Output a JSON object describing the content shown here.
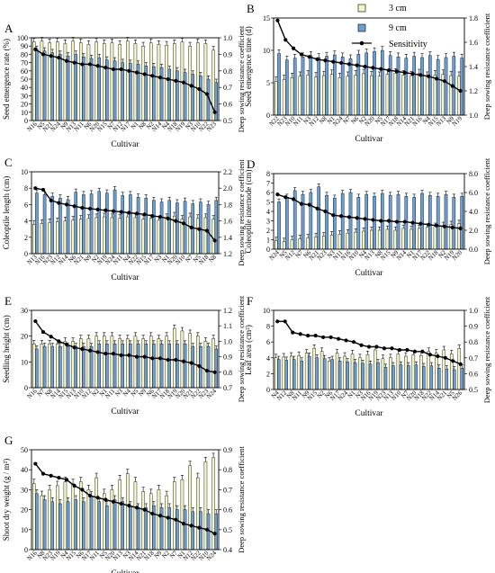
{
  "legend": [
    {
      "name": "3 cm",
      "type": "bar",
      "color": "#f4f4c4"
    },
    {
      "name": "9 cm",
      "type": "bar",
      "color": "#6a9fd6"
    },
    {
      "name": "Sensitivity",
      "type": "line",
      "color": "#000000"
    }
  ],
  "colors": {
    "bar_3cm": "#f4f4c4",
    "bar_9cm": "#6a9fd6",
    "line": "#000000"
  },
  "chart_data": [
    {
      "panel": "A",
      "type": "bar",
      "xlabel": "Cultivar",
      "ylabel": "Seed emergence rate (%)",
      "y2label": "Deep sowing resistance coefficient",
      "ylim": [
        0,
        100
      ],
      "yticks": [
        0,
        10,
        20,
        30,
        40,
        50,
        60,
        70,
        80,
        90,
        100
      ],
      "y2lim": [
        0.5,
        1.0
      ],
      "y2ticks": [
        "0.5",
        "0.6",
        "0.7",
        "0.8",
        "0.9",
        "1.0"
      ],
      "categories": [
        "N16",
        "N5",
        "N21",
        "N24",
        "N9",
        "N13",
        "N11",
        "N6",
        "N20",
        "N15",
        "N7",
        "N12",
        "N17",
        "N1",
        "N8",
        "N2",
        "N14",
        "N4",
        "N18",
        "N19",
        "N3",
        "N10",
        "N22",
        "N23"
      ],
      "series": [
        {
          "name": "3 cm",
          "values": [
            95,
            96,
            94,
            95,
            93,
            96,
            94,
            92,
            95,
            93,
            94,
            92,
            96,
            93,
            90,
            94,
            92,
            91,
            93,
            95,
            90,
            94,
            93,
            85
          ]
        },
        {
          "name": "9 cm",
          "values": [
            86,
            84,
            82,
            80,
            78,
            80,
            77,
            75,
            76,
            73,
            72,
            70,
            69,
            68,
            66,
            65,
            64,
            62,
            60,
            58,
            56,
            54,
            50,
            46
          ]
        },
        {
          "name": "Sensitivity",
          "values": [
            0.93,
            0.9,
            0.89,
            0.88,
            0.86,
            0.85,
            0.84,
            0.84,
            0.83,
            0.82,
            0.81,
            0.81,
            0.8,
            0.79,
            0.78,
            0.77,
            0.76,
            0.75,
            0.74,
            0.73,
            0.71,
            0.69,
            0.66,
            0.55
          ]
        }
      ]
    },
    {
      "panel": "B",
      "type": "bar",
      "xlabel": "Cultivar",
      "ylabel": "Seed emergence time (d)",
      "y2label": "Deep sowing resistance coefficient",
      "ylim": [
        0,
        15
      ],
      "yticks": [
        0,
        5,
        10,
        15
      ],
      "y2lim": [
        1.0,
        1.8
      ],
      "y2ticks": [
        "1.0",
        "1.2",
        "1.4",
        "1.6",
        "1.8"
      ],
      "categories": [
        "N22",
        "N23",
        "N10",
        "N11",
        "N3",
        "N12",
        "N8",
        "N1",
        "N24",
        "N7",
        "N6",
        "N2",
        "N20",
        "N5",
        "N17",
        "N18",
        "N14",
        "N21",
        "N16",
        "N4",
        "N15",
        "N13",
        "N9",
        "N19"
      ],
      "series": [
        {
          "name": "3 cm",
          "values": [
            5.2,
            5.5,
            5.8,
            6.0,
            6.2,
            5.9,
            6.1,
            6.3,
            5.8,
            6.0,
            6.2,
            6.4,
            6.1,
            6.0,
            6.3,
            6.5,
            6.2,
            6.1,
            6.4,
            6.0,
            6.2,
            6.3,
            6.1,
            6.0
          ]
        },
        {
          "name": "9 cm",
          "values": [
            9.5,
            8.5,
            8.8,
            9.0,
            9.2,
            8.9,
            9.1,
            9.3,
            9.0,
            8.7,
            9.4,
            9.6,
            9.8,
            10.0,
            9.2,
            9.0,
            8.8,
            9.1,
            8.9,
            9.2,
            8.6,
            8.9,
            9.1,
            8.8
          ]
        },
        {
          "name": "Sensitivity",
          "values": [
            1.78,
            1.62,
            1.55,
            1.5,
            1.48,
            1.46,
            1.45,
            1.44,
            1.43,
            1.42,
            1.41,
            1.4,
            1.39,
            1.38,
            1.37,
            1.36,
            1.35,
            1.34,
            1.33,
            1.32,
            1.3,
            1.28,
            1.24,
            1.2
          ]
        }
      ]
    },
    {
      "panel": "C",
      "type": "bar",
      "xlabel": "Cultivar",
      "ylabel": "Coleoptile length (cm)",
      "y2label": "Deep sowing resistance coefficient",
      "ylim": [
        0,
        10
      ],
      "yticks": [
        0,
        2,
        4,
        6,
        8,
        10
      ],
      "y2lim": [
        1.2,
        2.2
      ],
      "y2ticks": [
        "1.2",
        "1.4",
        "1.6",
        "1.8",
        "2.0",
        "2.2"
      ],
      "categories": [
        "N13",
        "N16",
        "N23",
        "N12",
        "N14",
        "N6",
        "N21",
        "N9",
        "N2",
        "N19",
        "N24",
        "N11",
        "N4",
        "N22",
        "N15",
        "N17",
        "N3",
        "N1",
        "N20",
        "N10",
        "N7",
        "N5",
        "N18",
        "N8"
      ],
      "series": [
        {
          "name": "3 cm",
          "values": [
            3.6,
            3.7,
            3.8,
            3.9,
            4.0,
            4.1,
            4.2,
            4.3,
            4.4,
            4.5,
            4.4,
            4.3,
            4.5,
            4.4,
            4.2,
            4.3,
            4.1,
            4.4,
            4.6,
            4.2,
            4.5,
            4.3,
            4.4,
            4.2
          ]
        },
        {
          "name": "9 cm",
          "values": [
            7.4,
            7.2,
            7.0,
            6.8,
            6.6,
            7.5,
            7.2,
            7.3,
            7.6,
            7.4,
            7.8,
            7.1,
            7.2,
            6.9,
            6.8,
            6.5,
            6.3,
            6.5,
            6.2,
            6.4,
            6.1,
            6.3,
            6.0,
            6.5
          ]
        },
        {
          "name": "Sensitivity",
          "values": [
            2.0,
            1.98,
            1.85,
            1.82,
            1.8,
            1.78,
            1.76,
            1.75,
            1.74,
            1.73,
            1.72,
            1.71,
            1.7,
            1.69,
            1.68,
            1.66,
            1.65,
            1.63,
            1.6,
            1.57,
            1.52,
            1.5,
            1.48,
            1.36
          ]
        }
      ]
    },
    {
      "panel": "D",
      "type": "bar",
      "xlabel": "Cultivar",
      "ylabel": "Coleoptile internode (cm)",
      "y2label": "Deep sowing resistance coefficient",
      "ylim": [
        0,
        8
      ],
      "yticks": [
        0,
        1,
        2,
        3,
        4,
        5,
        6,
        7,
        8
      ],
      "y2lim": [
        0.0,
        8.0
      ],
      "y2ticks": [
        "0.0",
        "2.0",
        "4.0",
        "6.0",
        "8.0"
      ],
      "categories": [
        "N24",
        "N5",
        "N12",
        "N7",
        "N6",
        "N21",
        "N23",
        "N3",
        "N11",
        "N16",
        "N10",
        "N4",
        "N13",
        "N8",
        "N15",
        "N9",
        "N14",
        "N1",
        "N17",
        "N22",
        "N18",
        "N2",
        "N19",
        "N20"
      ],
      "series": [
        {
          "name": "3 cm",
          "values": [
            0.9,
            0.8,
            1.0,
            1.1,
            1.2,
            1.3,
            1.4,
            1.5,
            1.6,
            1.7,
            1.8,
            1.9,
            2.0,
            2.0,
            2.1,
            2.0,
            2.2,
            2.1,
            2.2,
            2.3,
            2.4,
            2.5,
            2.6,
            2.7
          ]
        },
        {
          "name": "9 cm",
          "values": [
            5.0,
            5.5,
            6.2,
            5.8,
            6.0,
            6.6,
            5.7,
            5.4,
            5.9,
            6.0,
            5.5,
            5.8,
            5.6,
            5.9,
            5.7,
            5.8,
            5.6,
            5.5,
            5.9,
            5.7,
            5.6,
            5.8,
            5.5,
            5.6
          ]
        },
        {
          "name": "Sensitivity",
          "values": [
            5.8,
            5.5,
            5.3,
            4.8,
            4.7,
            4.3,
            4.0,
            3.6,
            3.5,
            3.4,
            3.3,
            3.2,
            3.1,
            3.0,
            3.0,
            2.9,
            2.9,
            2.8,
            2.7,
            2.6,
            2.5,
            2.4,
            2.3,
            2.2
          ]
        }
      ]
    },
    {
      "panel": "E",
      "type": "bar",
      "xlabel": "Cultivar",
      "ylabel": "Seedling height (cm)",
      "y2label": "Deep sowing resistance coefficient",
      "ylim": [
        0,
        30
      ],
      "yticks": [
        0,
        10,
        20,
        30
      ],
      "y2lim": [
        0.7,
        1.2
      ],
      "y2ticks": [
        "0.7",
        "0.8",
        "0.9",
        "1.0",
        "1.1",
        "1.2"
      ],
      "categories": [
        "N16",
        "N7",
        "N8",
        "N14",
        "N15",
        "N13",
        "N10",
        "N12",
        "N2",
        "N1",
        "N11",
        "N3",
        "N4",
        "N5",
        "N9",
        "N6",
        "N17",
        "N18",
        "N19",
        "N20",
        "N21",
        "N22",
        "N23",
        "N24"
      ],
      "series": [
        {
          "name": "3 cm",
          "values": [
            17,
            17,
            17,
            17,
            18,
            18,
            19,
            19,
            20,
            20,
            20,
            19,
            19,
            20,
            19,
            20,
            19,
            20,
            23,
            22,
            21,
            20,
            18,
            19
          ]
        },
        {
          "name": "9 cm",
          "values": [
            15,
            16,
            16,
            16,
            16,
            16,
            16,
            16,
            17,
            17,
            17,
            17,
            17,
            17,
            17,
            17,
            17,
            17,
            17,
            17,
            16,
            16,
            16,
            15
          ]
        },
        {
          "name": "Sensitivity",
          "values": [
            1.13,
            1.06,
            1.03,
            1.0,
            0.98,
            0.96,
            0.95,
            0.94,
            0.93,
            0.92,
            0.92,
            0.91,
            0.91,
            0.9,
            0.9,
            0.89,
            0.89,
            0.88,
            0.88,
            0.87,
            0.86,
            0.84,
            0.81,
            0.8
          ]
        }
      ]
    },
    {
      "panel": "F",
      "type": "bar",
      "xlabel": "Cultivar",
      "ylabel": "Leaf area (cm²)",
      "y2label": "Deep sowing resistance coefficient",
      "ylim": [
        0,
        10
      ],
      "yticks": [
        0,
        2,
        4,
        6,
        8,
        10
      ],
      "y2lim": [
        0.5,
        1.0
      ],
      "y2ticks": [
        "0.5",
        "0.6",
        "0.7",
        "0.8",
        "0.9",
        "1.0"
      ],
      "categories": [
        "N4",
        "N12",
        "N8",
        "N11",
        "N9",
        "N15",
        "N2",
        "N6",
        "N17",
        "N24",
        "N1",
        "N3",
        "N16",
        "N19",
        "N23",
        "N13",
        "N10",
        "N7",
        "N20",
        "N18",
        "N22",
        "N14",
        "N21",
        "N5",
        "N26"
      ],
      "series": [
        {
          "name": "3 cm",
          "values": [
            4.0,
            4.1,
            4.2,
            4.3,
            4.6,
            5.2,
            4.8,
            3.6,
            4.6,
            4.2,
            4.5,
            4.0,
            4.4,
            5.0,
            3.9,
            4.0,
            4.5,
            4.2,
            4.4,
            4.3,
            4.8,
            4.6,
            5.0,
            4.5,
            5.2
          ]
        },
        {
          "name": "9 cm",
          "values": [
            3.8,
            3.7,
            3.8,
            3.6,
            4.2,
            4.0,
            3.9,
            3.8,
            3.6,
            3.5,
            3.4,
            3.3,
            3.2,
            3.4,
            2.8,
            3.0,
            3.1,
            3.0,
            3.1,
            2.9,
            3.0,
            2.7,
            2.6,
            2.5,
            2.7
          ]
        },
        {
          "name": "Sensitivity",
          "values": [
            0.93,
            0.93,
            0.86,
            0.85,
            0.84,
            0.84,
            0.83,
            0.83,
            0.82,
            0.81,
            0.8,
            0.78,
            0.77,
            0.77,
            0.76,
            0.76,
            0.75,
            0.75,
            0.74,
            0.74,
            0.72,
            0.71,
            0.7,
            0.68,
            0.66
          ]
        }
      ]
    },
    {
      "panel": "G",
      "type": "bar",
      "xlabel": "Cultivar",
      "ylabel": "Shoot dry weight (g / m²)",
      "y2label": "Deep sowing resistance coefficient",
      "ylim": [
        0,
        50
      ],
      "yticks": [
        0,
        10,
        20,
        30,
        40,
        50
      ],
      "y2lim": [
        0.4,
        0.9
      ],
      "y2ticks": [
        "0.4",
        "0.5",
        "0.6",
        "0.7",
        "0.8",
        "0.9"
      ],
      "categories": [
        "N16",
        "N8",
        "N23",
        "N19",
        "N4",
        "N15",
        "N6",
        "N17",
        "N11",
        "N5",
        "N20",
        "N13",
        "N3",
        "N14",
        "N21",
        "N18",
        "N9",
        "N2",
        "N7",
        "N1",
        "N12",
        "N22",
        "N10",
        "N24"
      ],
      "series": [
        {
          "name": "3 cm",
          "values": [
            33,
            27,
            30,
            32,
            34,
            33,
            34,
            30,
            36,
            28,
            30,
            35,
            38,
            34,
            29,
            28,
            30,
            27,
            34,
            35,
            42,
            36,
            44,
            46
          ]
        },
        {
          "name": "9 cm",
          "values": [
            28,
            25,
            24,
            23,
            24,
            25,
            24,
            27,
            24,
            22,
            25,
            24,
            22,
            21,
            21,
            22,
            21,
            21,
            20,
            20,
            19,
            19,
            18,
            18
          ]
        },
        {
          "name": "Sensitivity",
          "values": [
            0.83,
            0.78,
            0.77,
            0.76,
            0.75,
            0.72,
            0.7,
            0.67,
            0.66,
            0.65,
            0.64,
            0.63,
            0.62,
            0.61,
            0.6,
            0.58,
            0.57,
            0.56,
            0.55,
            0.53,
            0.52,
            0.51,
            0.5,
            0.48
          ]
        }
      ]
    }
  ]
}
